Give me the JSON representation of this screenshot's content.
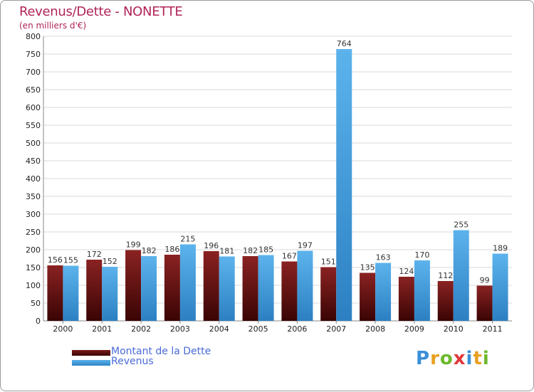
{
  "title": "Revenus/Dette - NONETTE",
  "subtitle": "(en milliers d'€)",
  "logo_text": "Proxiti",
  "colors": {
    "title": "#b0245a",
    "dette": "#7a1a1a",
    "revenus": "#4aa2e0",
    "legend_text": "#4a6ad8",
    "grid": "#d8d8d8",
    "axis_text": "#222222"
  },
  "chart_data": {
    "type": "bar",
    "title": "Revenus/Dette - NONETTE",
    "subtitle": "(en milliers d'€)",
    "categories": [
      "2000",
      "2001",
      "2002",
      "2003",
      "2004",
      "2005",
      "2006",
      "2007",
      "2008",
      "2009",
      "2010",
      "2011"
    ],
    "series": [
      {
        "name": "Montant de la Dette",
        "values": [
          156,
          172,
          199,
          186,
          196,
          182,
          167,
          151,
          135,
          124,
          112,
          99
        ]
      },
      {
        "name": "Revenus",
        "values": [
          155,
          152,
          182,
          215,
          181,
          185,
          197,
          764,
          163,
          170,
          255,
          189
        ]
      }
    ],
    "ylim": [
      0,
      800
    ],
    "yticks": [
      0,
      50,
      100,
      150,
      200,
      250,
      300,
      350,
      400,
      450,
      500,
      550,
      600,
      650,
      700,
      750,
      800
    ],
    "grid": true,
    "legend_position": "bottom-left",
    "xlabel": "",
    "ylabel": ""
  }
}
